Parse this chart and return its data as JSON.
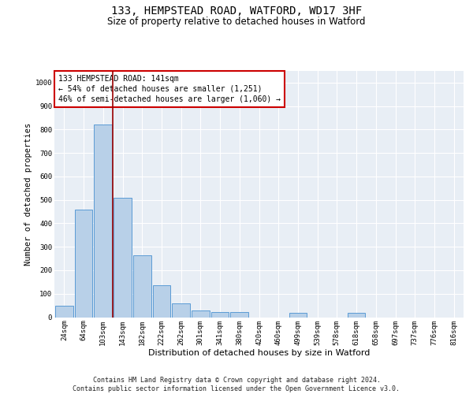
{
  "title": "133, HEMPSTEAD ROAD, WATFORD, WD17 3HF",
  "subtitle": "Size of property relative to detached houses in Watford",
  "xlabel": "Distribution of detached houses by size in Watford",
  "ylabel": "Number of detached properties",
  "categories": [
    "24sqm",
    "64sqm",
    "103sqm",
    "143sqm",
    "182sqm",
    "222sqm",
    "262sqm",
    "301sqm",
    "341sqm",
    "380sqm",
    "420sqm",
    "460sqm",
    "499sqm",
    "539sqm",
    "578sqm",
    "618sqm",
    "658sqm",
    "697sqm",
    "737sqm",
    "776sqm",
    "816sqm"
  ],
  "bar_heights": [
    50,
    460,
    820,
    510,
    265,
    135,
    60,
    30,
    22,
    22,
    0,
    0,
    18,
    0,
    0,
    18,
    0,
    0,
    0,
    0,
    0
  ],
  "bar_color": "#b8d0e8",
  "bar_edge_color": "#5b9bd5",
  "vline_color": "#990000",
  "annotation_text": "133 HEMPSTEAD ROAD: 141sqm\n← 54% of detached houses are smaller (1,251)\n46% of semi-detached houses are larger (1,060) →",
  "annotation_box_color": "#ffffff",
  "annotation_box_edge_color": "#cc0000",
  "ylim": [
    0,
    1050
  ],
  "yticks": [
    0,
    100,
    200,
    300,
    400,
    500,
    600,
    700,
    800,
    900,
    1000
  ],
  "background_color": "#e8eef5",
  "footer_text": "Contains HM Land Registry data © Crown copyright and database right 2024.\nContains public sector information licensed under the Open Government Licence v3.0.",
  "title_fontsize": 10,
  "subtitle_fontsize": 8.5,
  "xlabel_fontsize": 8,
  "ylabel_fontsize": 7.5,
  "tick_fontsize": 6.5,
  "annotation_fontsize": 7,
  "footer_fontsize": 6
}
